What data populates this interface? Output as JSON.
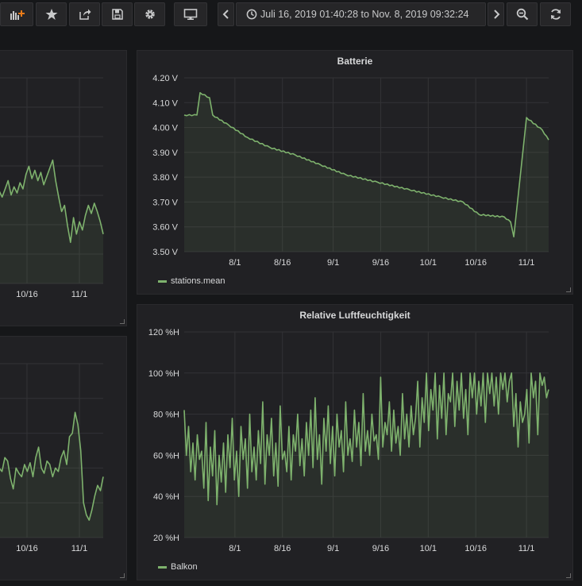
{
  "toolbar": {
    "time_range": "Juli 16, 2019 01:40:28 to Nov. 8, 2019 09:32:24",
    "icons": [
      "add-panel-icon",
      "star-icon",
      "share-icon",
      "save-icon",
      "gear-icon",
      "monitor-icon",
      "chevron-left-icon",
      "clock-icon",
      "chevron-right-icon",
      "zoom-out-icon",
      "refresh-icon"
    ]
  },
  "colors": {
    "series": "#7eb26d",
    "grid": "#333336",
    "panel_bg": "#212124"
  },
  "panels": {
    "top_left": {
      "x_ticks": [
        "10/16",
        "11/1"
      ],
      "chart_data": {
        "type": "line",
        "x_ticks": [
          "10/16",
          "11/1"
        ],
        "series": [
          {
            "values": [
              65,
              62,
              66,
              70,
              63,
              67,
              64,
              69,
              66,
              73,
              77,
              71,
              75,
              70,
              74,
              68,
              72,
              76,
              80,
              70,
              62,
              55,
              58,
              48,
              40,
              52,
              44,
              50,
              46,
              53,
              58,
              54,
              59,
              55,
              50,
              44
            ]
          }
        ]
      }
    },
    "bottom_left": {
      "x_ticks": [
        "10/16",
        "11/1"
      ],
      "chart_data": {
        "type": "line",
        "x_ticks": [
          "10/16",
          "11/1"
        ],
        "series": [
          {
            "values": [
              60,
              58,
              66,
              64,
              54,
              48,
              60,
              57,
              55,
              62,
              58,
              63,
              55,
              66,
              72,
              60,
              57,
              64,
              62,
              55,
              60,
              58,
              66,
              70,
              62,
              78,
              80,
              92,
              85,
              70,
              40,
              33,
              30,
              36,
              44,
              50,
              47,
              55
            ]
          }
        ]
      }
    },
    "batterie": {
      "title": "Batterie",
      "chart_data": {
        "type": "line",
        "title": "Batterie",
        "x_ticks": [
          "8/1",
          "8/16",
          "9/1",
          "9/16",
          "10/1",
          "10/16",
          "11/1"
        ],
        "y_ticks": [
          "3.50 V",
          "3.60 V",
          "3.70 V",
          "3.80 V",
          "3.90 V",
          "4.00 V",
          "4.10 V",
          "4.20 V"
        ],
        "ylim": [
          3.5,
          4.2
        ],
        "legend": [
          "stations.mean"
        ],
        "series": [
          {
            "name": "stations.mean",
            "x": [
              "2019-07-16",
              "2019-07-20",
              "2019-07-21",
              "2019-07-24",
              "2019-07-25",
              "2019-07-30",
              "2019-08-05",
              "2019-08-12",
              "2019-08-20",
              "2019-08-28",
              "2019-09-05",
              "2019-09-15",
              "2019-09-25",
              "2019-10-05",
              "2019-10-12",
              "2019-10-17",
              "2019-10-25",
              "2019-10-27",
              "2019-10-28",
              "2019-11-01",
              "2019-11-06",
              "2019-11-08"
            ],
            "y": [
              4.05,
              4.05,
              4.14,
              4.12,
              4.05,
              4.01,
              3.96,
              3.92,
              3.89,
              3.85,
              3.81,
              3.78,
              3.75,
              3.72,
              3.7,
              3.65,
              3.64,
              3.62,
              3.56,
              4.04,
              3.99,
              3.95
            ]
          }
        ]
      }
    },
    "humidity": {
      "title": "Relative Luftfeuchtigkeit",
      "chart_data": {
        "type": "line",
        "title": "Relative Luftfeuchtigkeit",
        "x_ticks": [
          "8/1",
          "8/16",
          "9/1",
          "9/16",
          "10/1",
          "10/16",
          "11/1"
        ],
        "y_ticks": [
          "20 %H",
          "40 %H",
          "60 %H",
          "80 %H",
          "100 %H",
          "120 %H"
        ],
        "ylim": [
          20,
          120
        ],
        "legend": [
          "Balkon"
        ],
        "series": [
          {
            "name": "Balkon",
            "values": [
              82,
              60,
              74,
              52,
              66,
              48,
              70,
              58,
              62,
              44,
              76,
              38,
              64,
              50,
              72,
              36,
              60,
              47,
              66,
              42,
              70,
              54,
              78,
              48,
              62,
              40,
              74,
              58,
              68,
              44,
              80,
              52,
              64,
              48,
              72,
              56,
              86,
              46,
              70,
              60,
              78,
              50,
              66,
              45,
              84,
              58,
              62,
              52,
              74,
              48,
              70,
              62,
              80,
              55,
              68,
              50,
              76,
              60,
              82,
              54,
              88,
              58,
              70,
              46,
              78,
              62,
              84,
              56,
              74,
              50,
              80,
              64,
              72,
              52,
              86,
              60,
              68,
              57,
              82,
              64,
              76,
              55,
              90,
              62,
              72,
              60,
              80,
              67,
              70,
              58,
              98,
              64,
              76,
              70,
              86,
              62,
              82,
              66,
              74,
              60,
              90,
              68,
              80,
              64,
              84,
              70,
              78,
              96,
              64,
              88,
              76,
              100,
              72,
              92,
              82,
              100,
              68,
              94,
              78,
              100,
              70,
              90,
              86,
              100,
              74,
              96,
              82,
              100,
              78,
              92,
              70,
              100,
              88,
              100,
              80,
              96,
              84,
              100,
              76,
              100,
              90,
              100,
              84,
              98,
              80,
              100,
              92,
              100,
              86,
              96,
              100,
              74,
              90,
              64,
              86,
              76,
              80,
              92,
              66,
              100,
              88,
              96,
              70,
              100,
              94,
              98,
              88,
              92
            ]
          }
        ]
      }
    }
  }
}
